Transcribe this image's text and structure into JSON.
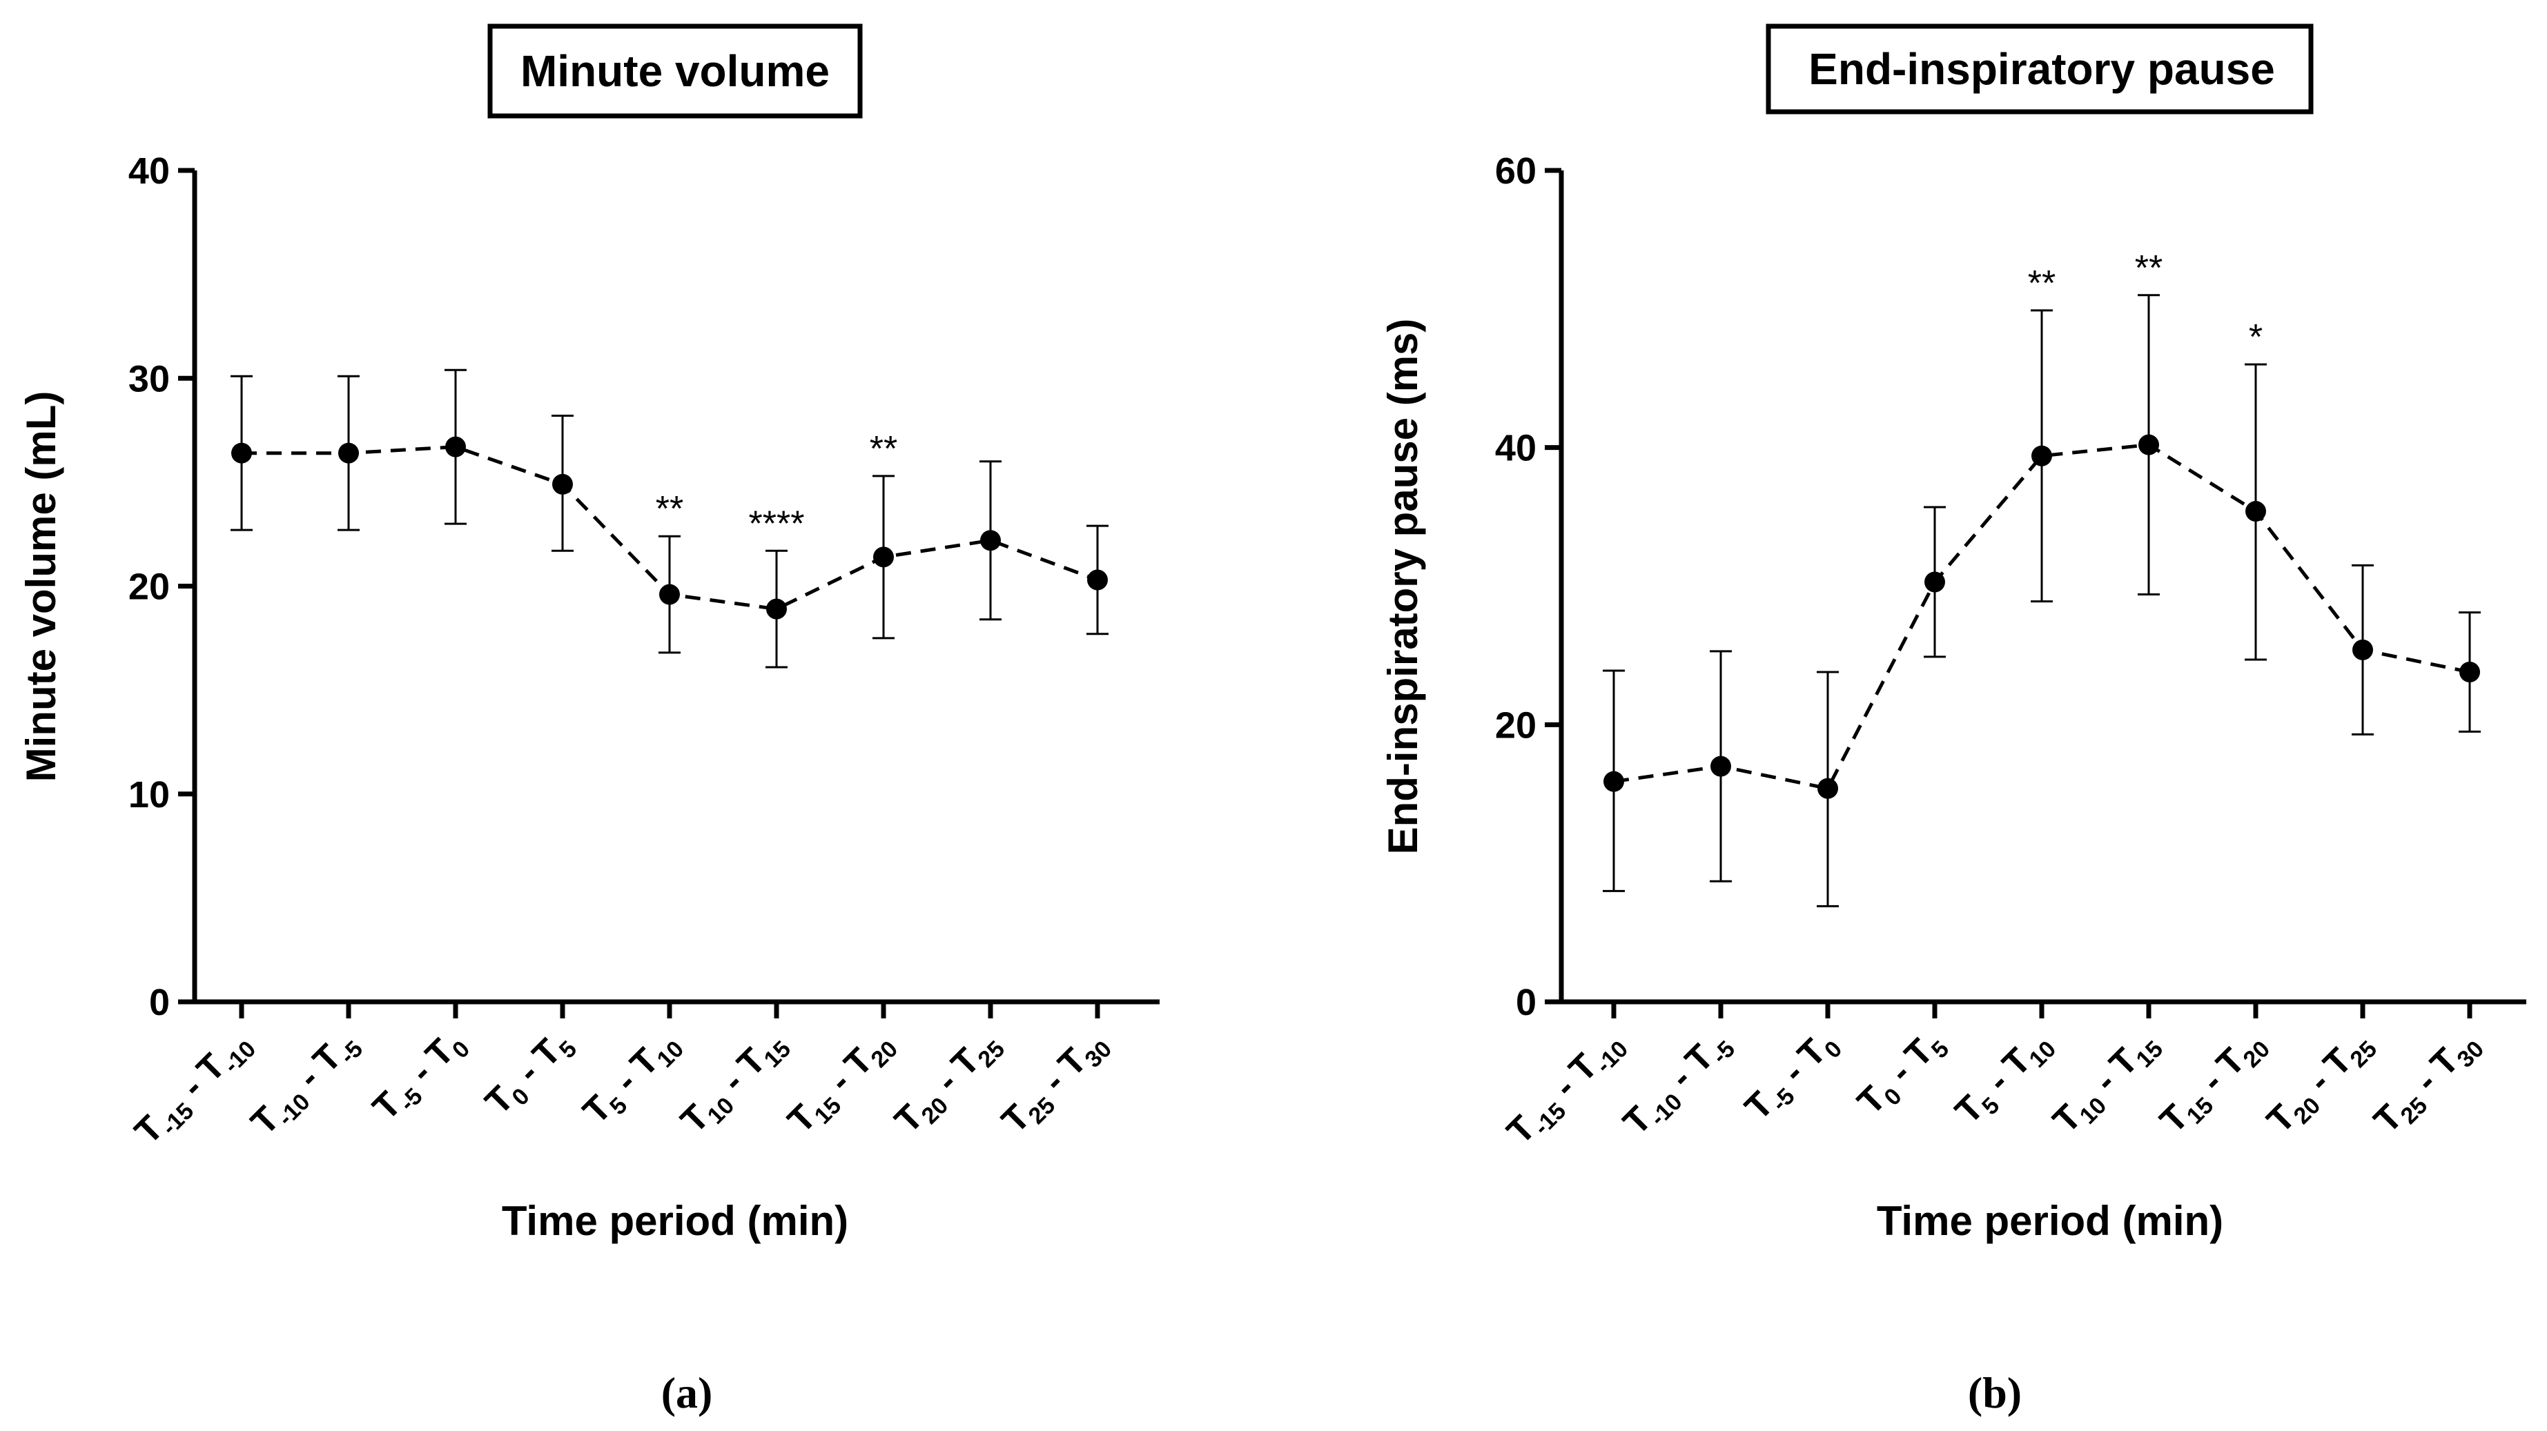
{
  "chart_data": [
    {
      "type": "line",
      "panel_label": "(a)",
      "title": "Minute volume",
      "xlabel": "Time period (min)",
      "ylabel": "Minute volume (mL)",
      "ylim": [
        0,
        40
      ],
      "yticks": [
        0,
        10,
        20,
        30,
        40
      ],
      "categories": [
        {
          "a": "T",
          "asub": "-15",
          "b": "T",
          "bsub": "-10"
        },
        {
          "a": "T",
          "asub": "-10",
          "b": "T",
          "bsub": "-5"
        },
        {
          "a": "T",
          "asub": "-5",
          "b": "T",
          "bsub": "0"
        },
        {
          "a": "T",
          "asub": "0",
          "b": "T",
          "bsub": "5"
        },
        {
          "a": "T",
          "asub": "5",
          "b": "T",
          "bsub": "10"
        },
        {
          "a": "T",
          "asub": "10",
          "b": "T",
          "bsub": "15"
        },
        {
          "a": "T",
          "asub": "15",
          "b": "T",
          "bsub": "20"
        },
        {
          "a": "T",
          "asub": "20",
          "b": "T",
          "bsub": "25"
        },
        {
          "a": "T",
          "asub": "25",
          "b": "T",
          "bsub": "30"
        }
      ],
      "series": [
        {
          "name": "Minute volume",
          "values": [
            26.4,
            26.4,
            26.7,
            24.9,
            19.6,
            18.9,
            21.4,
            22.2,
            20.3
          ],
          "err_low": [
            22.7,
            22.7,
            23.0,
            21.7,
            16.8,
            16.1,
            17.5,
            18.4,
            17.7
          ],
          "err_high": [
            30.1,
            30.1,
            30.4,
            28.2,
            22.4,
            21.7,
            25.3,
            26.0,
            22.9
          ]
        }
      ],
      "significance": [
        "",
        "",
        "",
        "",
        "**",
        "****",
        "**",
        "",
        ""
      ]
    },
    {
      "type": "line",
      "panel_label": "(b)",
      "title": "End-inspiratory pause",
      "xlabel": "Time period (min)",
      "ylabel": "End-inspiratory pause (ms)",
      "ylim": [
        0,
        60
      ],
      "yticks": [
        0,
        20,
        40,
        60
      ],
      "categories": [
        {
          "a": "T",
          "asub": "-15",
          "b": "T",
          "bsub": "-10"
        },
        {
          "a": "T",
          "asub": "-10",
          "b": "T",
          "bsub": "-5"
        },
        {
          "a": "T",
          "asub": "-5",
          "b": "T",
          "bsub": "0"
        },
        {
          "a": "T",
          "asub": "0",
          "b": "T",
          "bsub": "5"
        },
        {
          "a": "T",
          "asub": "5",
          "b": "T",
          "bsub": "10"
        },
        {
          "a": "T",
          "asub": "10",
          "b": "T",
          "bsub": "15"
        },
        {
          "a": "T",
          "asub": "15",
          "b": "T",
          "bsub": "20"
        },
        {
          "a": "T",
          "asub": "20",
          "b": "T",
          "bsub": "25"
        },
        {
          "a": "T",
          "asub": "25",
          "b": "T",
          "bsub": "30"
        }
      ],
      "series": [
        {
          "name": "End-inspiratory pause",
          "values": [
            15.9,
            17.0,
            15.4,
            30.3,
            39.4,
            40.2,
            35.4,
            25.4,
            23.8
          ],
          "err_low": [
            8.0,
            8.7,
            6.9,
            24.9,
            28.9,
            29.4,
            24.7,
            19.3,
            19.5
          ],
          "err_high": [
            23.9,
            25.3,
            23.8,
            35.7,
            49.9,
            51.0,
            46.0,
            31.5,
            28.1
          ]
        }
      ],
      "significance": [
        "",
        "",
        "",
        "",
        "**",
        "**",
        "*",
        "",
        ""
      ]
    }
  ]
}
